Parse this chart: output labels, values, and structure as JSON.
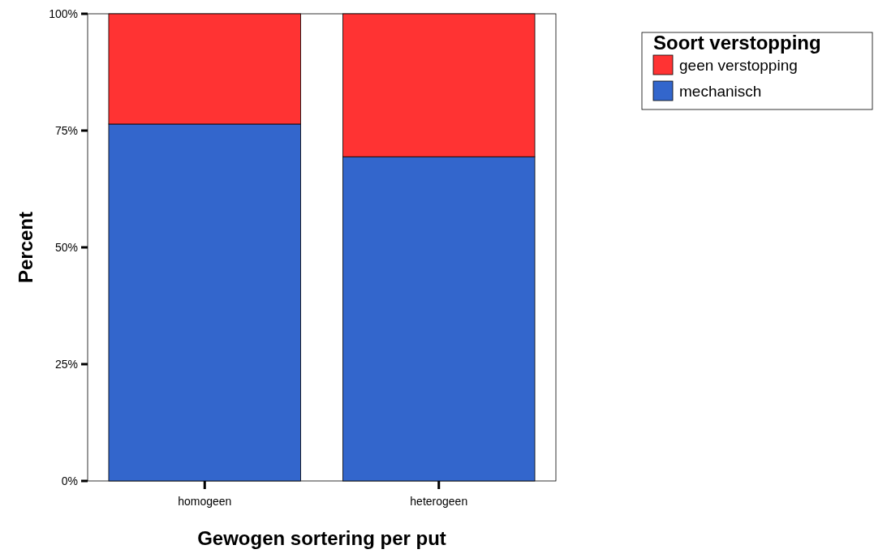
{
  "chart_data": {
    "type": "bar",
    "stacked": true,
    "xlabel": "Gewogen sortering per put",
    "ylabel": "Percent",
    "legend_title": "Soort verstopping",
    "legend": "top right",
    "categories": [
      "homogeen",
      "heterogeen"
    ],
    "series": [
      {
        "name": "mechanisch",
        "color": "#3366cc",
        "values": [
          76.4,
          69.4
        ]
      },
      {
        "name": "geen verstopping",
        "color": "#ff3333",
        "values": [
          23.6,
          30.6
        ]
      }
    ],
    "ylim": [
      0,
      100
    ],
    "yticks": [
      {
        "value": 0,
        "label": "0%"
      },
      {
        "value": 25,
        "label": "25%"
      },
      {
        "value": 50,
        "label": "50%"
      },
      {
        "value": 75,
        "label": "75%"
      },
      {
        "value": 100,
        "label": "100%"
      }
    ],
    "grid": false
  }
}
